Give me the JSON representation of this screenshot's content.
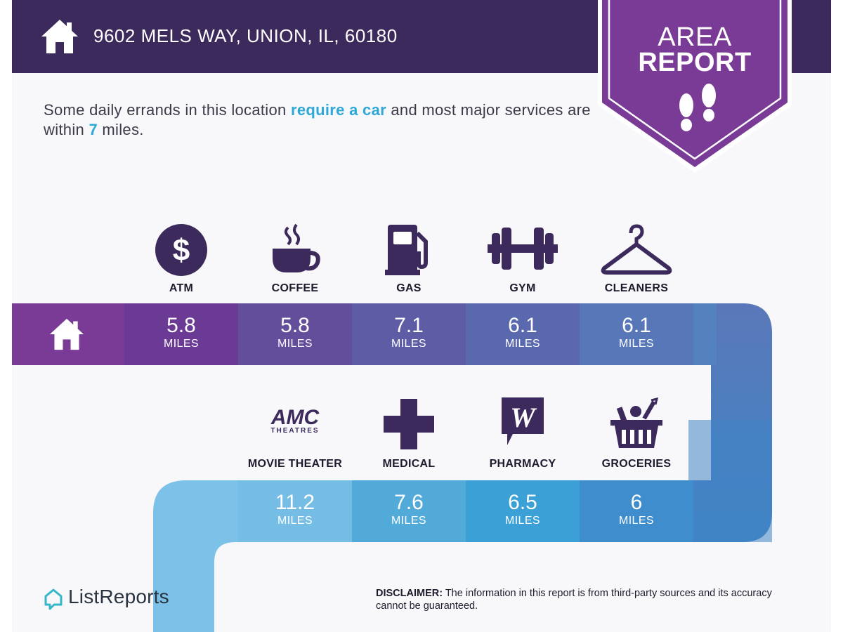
{
  "header": {
    "address": "9602 MELS WAY, UNION, IL, 60180",
    "home_icon": "house-icon"
  },
  "badge": {
    "line1": "AREA",
    "line2": "REPORT",
    "icon": "footprints-icon",
    "color": "#7a3b96"
  },
  "intro": {
    "part1": "Some daily errands in this location ",
    "highlight": "require a car",
    "part2": " and most major services are within ",
    "miles_value": "7",
    "part3": " miles."
  },
  "row1": [
    {
      "label": "ATM",
      "icon": "dollar-icon",
      "value": "5.8",
      "unit": "MILES",
      "color": "#6a3a95"
    },
    {
      "label": "COFFEE",
      "icon": "coffee-cup-icon",
      "value": "5.8",
      "unit": "MILES",
      "color": "#634e9c"
    },
    {
      "label": "GAS",
      "icon": "gas-pump-icon",
      "value": "7.1",
      "unit": "MILES",
      "color": "#5d5ca5"
    },
    {
      "label": "GYM",
      "icon": "dumbbell-icon",
      "value": "6.1",
      "unit": "MILES",
      "color": "#5a68ad"
    },
    {
      "label": "CLEANERS",
      "icon": "hanger-icon",
      "value": "6.1",
      "unit": "MILES",
      "color": "#5877b8"
    }
  ],
  "row2": [
    {
      "label": "MOVIE THEATER",
      "icon": "amc-theatres-logo-icon",
      "logo_line1": "AMC",
      "logo_line2": "THEATRES",
      "value": "11.2",
      "unit": "MILES",
      "color": "#76bde6"
    },
    {
      "label": "MEDICAL",
      "icon": "medical-cross-icon",
      "value": "7.6",
      "unit": "MILES",
      "color": "#52aad9"
    },
    {
      "label": "PHARMACY",
      "icon": "walgreens-logo-icon",
      "logo_letter": "W",
      "value": "6.5",
      "unit": "MILES",
      "color": "#3aa0d5"
    },
    {
      "label": "GROCERIES",
      "icon": "grocery-basket-icon",
      "value": "6",
      "unit": "MILES",
      "color": "#3f8dcc"
    }
  ],
  "home_cell_icon": "house-icon",
  "footer": {
    "brand": "ListReports",
    "brand_icon": "listreports-logo-icon",
    "disclaimer_label": "DISCLAIMER:",
    "disclaimer_text": " The information in this report is from third-party sources and its accuracy cannot be guaranteed."
  },
  "colors": {
    "header_bg": "#3d2a5c",
    "accent": "#2fa8d8",
    "icon_color": "#3d2a5c"
  }
}
